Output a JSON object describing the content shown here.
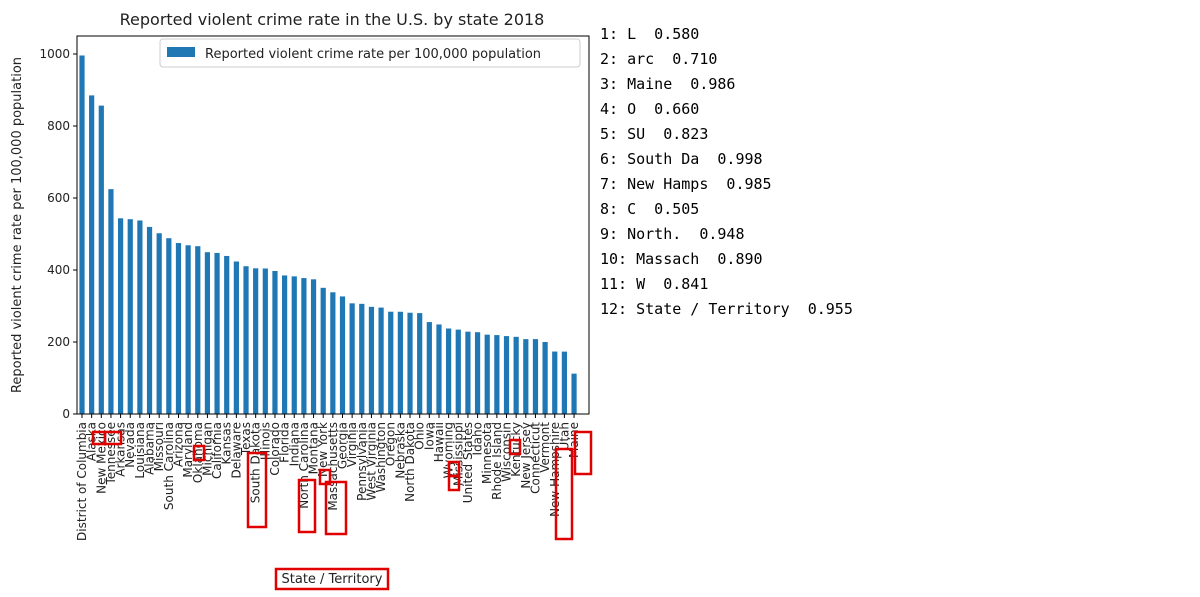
{
  "chart_data": {
    "type": "bar",
    "title": "Reported violent crime rate in the U.S. by state 2018",
    "xlabel": "State / Territory",
    "ylabel": "Reported violent crime rate per 100,000 population",
    "ylim": [
      0,
      1050
    ],
    "yticks": [
      0,
      200,
      400,
      600,
      800,
      1000
    ],
    "grid": false,
    "legend_position": "top-right",
    "bar_color": "#1f77b4",
    "box_color": "#e00000",
    "categories": [
      "District of Columbia",
      "Alaska",
      "New Mexico",
      "Tennessee",
      "Arkansas",
      "Nevada",
      "Louisiana",
      "Alabama",
      "Missouri",
      "South Carolina",
      "Arizona",
      "Maryland",
      "Oklahoma",
      "Michigan",
      "California",
      "Kansas",
      "Delaware",
      "Texas",
      "South Dakota",
      "Illinois",
      "Colorado",
      "Florida",
      "Indiana",
      "North Carolina",
      "Montana",
      "New York",
      "Massachusetts",
      "Georgia",
      "Virginia",
      "Pennsylvania",
      "West Virginia",
      "Washington",
      "Oregon",
      "Nebraska",
      "North Dakota",
      "Ohio",
      "Iowa",
      "Hawaii",
      "Wyoming",
      "Mississippi",
      "United States",
      "Idaho",
      "Minnesota",
      "Rhode Island",
      "Wisconsin",
      "Kentucky",
      "New Jersey",
      "Connecticut",
      "Vermont",
      "New Hampshire",
      "Utah",
      "Maine"
    ],
    "series": [
      {
        "name": "Reported violent crime rate per 100,000 population",
        "values": [
          995.9,
          885.0,
          856.6,
          624.6,
          543.6,
          541.1,
          537.5,
          519.6,
          502.1,
          488.3,
          474.9,
          468.7,
          466.1,
          449.4,
          447.4,
          439.0,
          423.6,
          410.5,
          404.7,
          404.1,
          397.2,
          384.9,
          382.3,
          377.6,
          374.1,
          350.5,
          338.1,
          326.6,
          307.4,
          306.0,
          297.7,
          295.6,
          284.1,
          284.0,
          281.3,
          280.3,
          255.3,
          248.7,
          237.5,
          234.4,
          228.7,
          227.2,
          220.4,
          219.2,
          216.4,
          214.4,
          208.0,
          208.0,
          200.0,
          173.5,
          173.3,
          112.1
        ]
      }
    ],
    "annotations": [
      {
        "label": "1",
        "text": "L",
        "score": "0.580"
      },
      {
        "label": "2",
        "text": "arc",
        "score": "0.710"
      },
      {
        "label": "3",
        "text": "Maine",
        "score": "0.986"
      },
      {
        "label": "4",
        "text": "O",
        "score": "0.660"
      },
      {
        "label": "5",
        "text": "SU",
        "score": "0.823"
      },
      {
        "label": "6",
        "text": "South Da",
        "score": "0.998"
      },
      {
        "label": "7",
        "text": "New Hamps",
        "score": "0.985"
      },
      {
        "label": "8",
        "text": "C",
        "score": "0.505"
      },
      {
        "label": "9",
        "text": "North.",
        "score": "0.948"
      },
      {
        "label": "10",
        "text": "Massach",
        "score": "0.890"
      },
      {
        "label": "11",
        "text": "W",
        "score": "0.841"
      },
      {
        "label": "12",
        "text": "State / Territory",
        "score": "0.955"
      }
    ]
  }
}
